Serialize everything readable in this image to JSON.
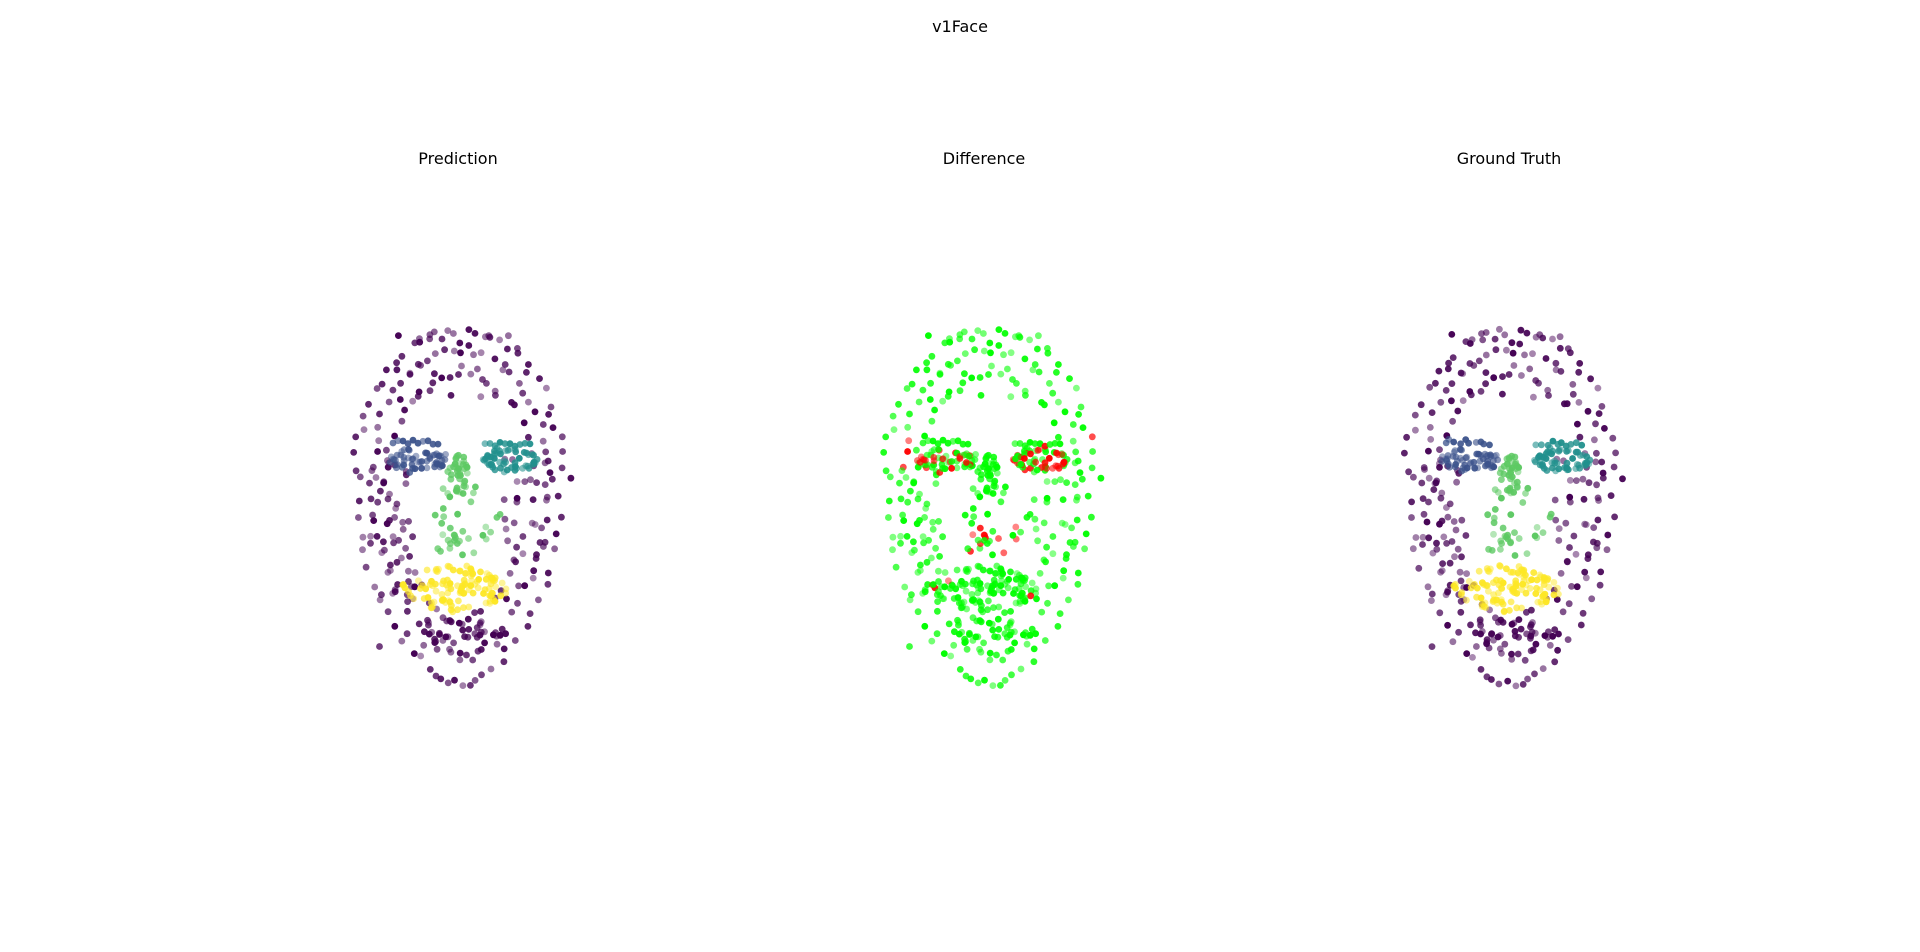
{
  "figure": {
    "title": "v1Face"
  },
  "colors": {
    "background": "#ffffff",
    "text": "#000000",
    "face_contour": "#440154",
    "left_eye_region": "#3b528b",
    "right_eye_region": "#21908d",
    "nose_region": "#5dc963",
    "mouth_region": "#fde725",
    "difference_match": "#00ff00",
    "difference_mismatch": "#ff0000"
  },
  "panels": [
    {
      "id": "prediction",
      "title": "Prediction"
    },
    {
      "id": "difference",
      "title": "Difference"
    },
    {
      "id": "ground_truth",
      "title": "Ground Truth"
    }
  ],
  "chart_data": [
    {
      "type": "scatter",
      "title": "Prediction",
      "axes": "off",
      "grid": false,
      "legend": "none",
      "series": [
        {
          "region": "face contour",
          "color": "#440154"
        },
        {
          "region": "left eye",
          "color": "#3b528b"
        },
        {
          "region": "right eye",
          "color": "#21908d"
        },
        {
          "region": "nose",
          "color": "#5dc963"
        },
        {
          "region": "mouth",
          "color": "#fde725"
        }
      ]
    },
    {
      "type": "scatter",
      "title": "Difference",
      "axes": "off",
      "grid": false,
      "legend": "none",
      "series": [
        {
          "region": "matching",
          "color": "#00ff00"
        },
        {
          "region": "mismatching",
          "color": "#ff0000"
        }
      ]
    },
    {
      "type": "scatter",
      "title": "Ground Truth",
      "axes": "off",
      "grid": false,
      "legend": "none",
      "series": [
        {
          "region": "face contour",
          "color": "#440154"
        },
        {
          "region": "left eye",
          "color": "#3b528b"
        },
        {
          "region": "right eye",
          "color": "#21908d"
        },
        {
          "region": "nose",
          "color": "#5dc963"
        },
        {
          "region": "mouth",
          "color": "#fde725"
        }
      ]
    }
  ]
}
